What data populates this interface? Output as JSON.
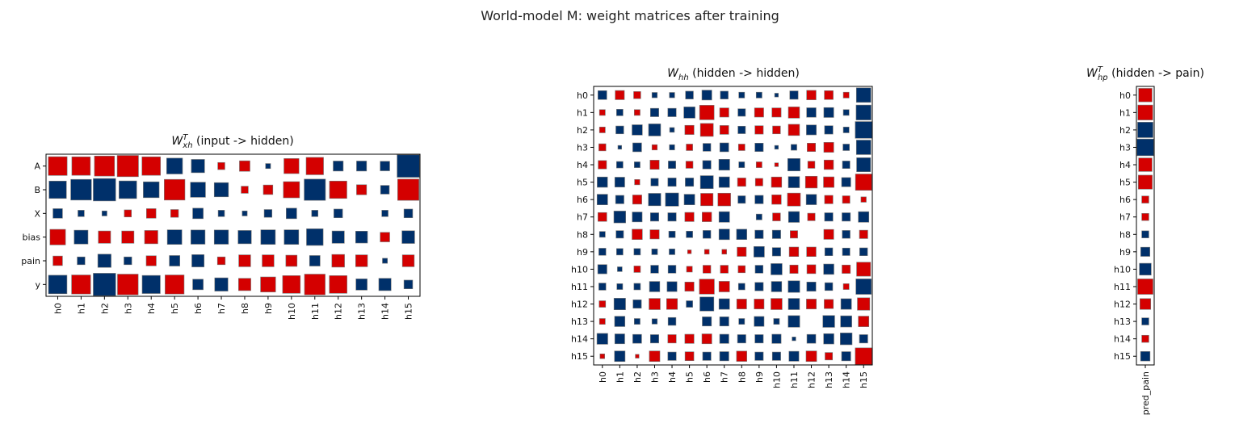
{
  "suptitle": "World-model M: weight matrices after training",
  "colors": {
    "positive": "#d40000",
    "negative": "#00306a",
    "edge": "#777777"
  },
  "chart_data": [
    {
      "type": "heatmap",
      "style": "hinton",
      "title_main": "W",
      "title_sub": "xh",
      "title_sup": "T",
      "title_rest": " (input -> hidden)",
      "row_labels": [
        "A",
        "B",
        "X",
        "bias",
        "pain",
        "y"
      ],
      "col_labels": [
        "h0",
        "h1",
        "h2",
        "h3",
        "h4",
        "h5",
        "h6",
        "h7",
        "h8",
        "h9",
        "h10",
        "h11",
        "h12",
        "h13",
        "h14",
        "h15"
      ],
      "max_abs": 1.0,
      "values": [
        [
          0.7,
          0.68,
          0.8,
          0.9,
          0.68,
          -0.5,
          -0.35,
          0.1,
          0.22,
          -0.05,
          0.45,
          0.6,
          -0.2,
          -0.2,
          -0.18,
          -1.0
        ],
        [
          -0.6,
          -0.85,
          -1.0,
          -0.62,
          -0.5,
          0.85,
          -0.45,
          -0.4,
          0.1,
          0.18,
          0.52,
          -0.9,
          0.6,
          0.2,
          -0.15,
          0.9
        ],
        [
          -0.18,
          -0.08,
          -0.05,
          0.1,
          0.18,
          0.12,
          -0.22,
          -0.08,
          -0.05,
          -0.12,
          -0.22,
          -0.08,
          -0.15,
          0.0,
          -0.08,
          -0.15
        ],
        [
          0.48,
          -0.38,
          0.3,
          0.3,
          0.35,
          -0.42,
          -0.4,
          -0.4,
          -0.35,
          -0.42,
          -0.42,
          -0.55,
          -0.3,
          -0.28,
          0.18,
          -0.32
        ],
        [
          0.18,
          -0.12,
          -0.35,
          -0.12,
          0.2,
          -0.22,
          -0.3,
          0.12,
          0.28,
          0.28,
          0.25,
          -0.22,
          0.32,
          0.28,
          -0.05,
          0.28
        ],
        [
          -0.68,
          0.72,
          -1.0,
          0.85,
          -0.65,
          0.72,
          -0.22,
          -0.35,
          0.3,
          0.45,
          0.62,
          0.85,
          0.62,
          -0.25,
          -0.3,
          -0.15
        ]
      ]
    },
    {
      "type": "heatmap",
      "style": "hinton",
      "title_main": "W",
      "title_sub": "hh",
      "title_sup": "",
      "title_rest": " (hidden -> hidden)",
      "row_labels": [
        "h0",
        "h1",
        "h2",
        "h3",
        "h4",
        "h5",
        "h6",
        "h7",
        "h8",
        "h9",
        "h10",
        "h11",
        "h12",
        "h13",
        "h14",
        "h15"
      ],
      "col_labels": [
        "h0",
        "h1",
        "h2",
        "h3",
        "h4",
        "h5",
        "h6",
        "h7",
        "h8",
        "h9",
        "h10",
        "h11",
        "h12",
        "h13",
        "h14",
        "h15"
      ],
      "max_abs": 1.0,
      "values": [
        [
          -0.28,
          0.3,
          0.18,
          -0.1,
          -0.1,
          -0.22,
          -0.35,
          -0.22,
          -0.12,
          -0.12,
          -0.05,
          -0.25,
          0.32,
          0.28,
          0.12,
          -0.75
        ],
        [
          0.12,
          -0.15,
          0.12,
          -0.25,
          -0.25,
          -0.45,
          0.75,
          0.3,
          -0.2,
          0.3,
          0.3,
          0.45,
          -0.32,
          -0.35,
          -0.12,
          -0.8
        ],
        [
          0.12,
          -0.22,
          -0.38,
          -0.52,
          -0.08,
          0.3,
          0.6,
          0.28,
          -0.2,
          0.25,
          0.22,
          0.45,
          -0.35,
          -0.25,
          -0.12,
          -1.0
        ],
        [
          0.18,
          -0.05,
          -0.28,
          0.1,
          -0.1,
          0.15,
          -0.22,
          -0.28,
          0.15,
          -0.25,
          -0.05,
          -0.12,
          0.25,
          0.35,
          -0.15,
          -0.75
        ],
        [
          0.25,
          -0.15,
          -0.12,
          0.3,
          -0.2,
          0.18,
          -0.25,
          -0.42,
          -0.12,
          0.12,
          0.05,
          -0.55,
          0.18,
          0.32,
          -0.2,
          -0.7
        ],
        [
          -0.38,
          -0.35,
          0.1,
          -0.2,
          -0.25,
          -0.25,
          -0.6,
          -0.4,
          0.25,
          0.2,
          0.38,
          -0.45,
          0.5,
          0.4,
          -0.3,
          0.95
        ],
        [
          -0.4,
          -0.25,
          0.3,
          -0.55,
          -0.62,
          -0.4,
          0.55,
          0.58,
          -0.2,
          -0.25,
          0.32,
          0.6,
          -0.38,
          0.25,
          0.2,
          0.1
        ],
        [
          0.28,
          -0.5,
          -0.35,
          -0.25,
          -0.25,
          0.3,
          0.32,
          -0.4,
          0.0,
          -0.12,
          0.22,
          -0.42,
          0.2,
          -0.25,
          -0.25,
          -0.4
        ],
        [
          -0.12,
          -0.2,
          0.38,
          0.3,
          -0.15,
          -0.15,
          -0.22,
          -0.4,
          -0.38,
          -0.25,
          -0.25,
          0.2,
          0.0,
          0.35,
          -0.22,
          0.25
        ],
        [
          -0.18,
          -0.15,
          -0.15,
          -0.12,
          -0.12,
          0.05,
          0.08,
          0.08,
          0.3,
          -0.4,
          -0.25,
          0.32,
          0.32,
          -0.22,
          -0.2,
          -0.22
        ],
        [
          -0.3,
          -0.08,
          0.15,
          -0.22,
          -0.22,
          0.12,
          0.22,
          0.22,
          0.18,
          -0.22,
          -0.45,
          0.25,
          0.28,
          -0.38,
          0.25,
          0.7
        ],
        [
          -0.18,
          -0.12,
          -0.15,
          -0.38,
          -0.35,
          0.3,
          0.8,
          0.4,
          -0.15,
          -0.25,
          -0.38,
          -0.48,
          -0.3,
          -0.22,
          0.12,
          -0.85
        ],
        [
          0.15,
          -0.48,
          -0.25,
          0.45,
          0.42,
          -0.15,
          -0.7,
          -0.4,
          0.35,
          0.35,
          0.45,
          -0.45,
          0.35,
          0.3,
          -0.4,
          0.55
        ],
        [
          0.12,
          -0.38,
          -0.12,
          -0.1,
          -0.22,
          0.0,
          -0.3,
          -0.3,
          -0.12,
          -0.35,
          -0.12,
          -0.48,
          0.0,
          -0.5,
          -0.45,
          0.4
        ],
        [
          -0.42,
          -0.35,
          -0.28,
          -0.25,
          0.25,
          0.3,
          0.35,
          -0.3,
          -0.25,
          -0.25,
          -0.3,
          -0.05,
          -0.28,
          -0.38,
          -0.5,
          -0.25
        ],
        [
          0.08,
          -0.4,
          0.05,
          0.4,
          -0.25,
          0.28,
          -0.25,
          -0.3,
          0.38,
          -0.25,
          -0.25,
          -0.35,
          0.4,
          0.2,
          -0.3,
          1.0
        ]
      ]
    },
    {
      "type": "heatmap",
      "style": "hinton",
      "title_main": "W",
      "title_sub": "hp",
      "title_sup": "T",
      "title_rest": " (hidden -> pain)",
      "row_labels": [
        "h0",
        "h1",
        "h2",
        "h3",
        "h4",
        "h5",
        "h6",
        "h7",
        "h8",
        "h9",
        "h10",
        "h11",
        "h12",
        "h13",
        "h14",
        "h15"
      ],
      "col_labels": [
        "pred_pain"
      ],
      "max_abs": 1.0,
      "values": [
        [
          0.65
        ],
        [
          0.8
        ],
        [
          -0.85
        ],
        [
          -1.0
        ],
        [
          0.65
        ],
        [
          0.7
        ],
        [
          0.18
        ],
        [
          0.18
        ],
        [
          -0.18
        ],
        [
          -0.3
        ],
        [
          -0.5
        ],
        [
          0.85
        ],
        [
          0.42
        ],
        [
          -0.18
        ],
        [
          0.18
        ],
        [
          -0.32
        ]
      ]
    }
  ]
}
